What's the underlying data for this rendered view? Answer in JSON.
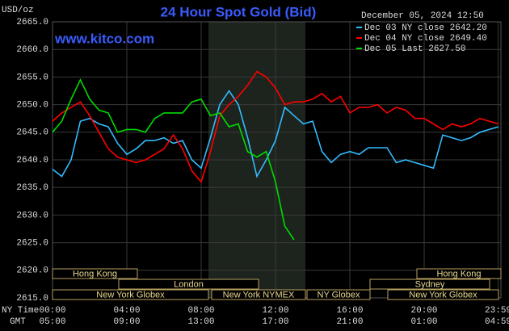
{
  "chart_data": {
    "type": "line",
    "title": "24 Hour Spot Gold (Bid)",
    "unit_label": "USD/oz",
    "website": "www.kitco.com",
    "timestamp": "December 05, 2024 12:50",
    "x_axis_label": "NY Time",
    "x2_axis_label": "GMT",
    "x": [
      0,
      0.5,
      1,
      1.5,
      2,
      2.5,
      3,
      3.5,
      4,
      4.5,
      5,
      5.5,
      6,
      6.5,
      7,
      7.5,
      8,
      8.5,
      9,
      9.5,
      10,
      10.5,
      11,
      11.5,
      12,
      12.5,
      13,
      13.5,
      14,
      14.5,
      15,
      15.5,
      16,
      16.5,
      17,
      17.5,
      18,
      18.5,
      19,
      19.5,
      20,
      20.5,
      21,
      21.5,
      22,
      22.5,
      23,
      23.5,
      24
    ],
    "xlim": [
      0,
      24.13
    ],
    "xticks": [
      {
        "value": 0,
        "label": "00:00"
      },
      {
        "value": 4,
        "label": "04:00"
      },
      {
        "value": 8,
        "label": "08:00"
      },
      {
        "value": 12,
        "label": "12:00"
      },
      {
        "value": 16,
        "label": "16:00"
      },
      {
        "value": 20,
        "label": "20:00"
      },
      {
        "value": 23.98,
        "label": "23:59"
      }
    ],
    "gmt_labels": [
      "05:00",
      "09:00",
      "13:00",
      "17:00",
      "21:00",
      "01:00",
      "04:59"
    ],
    "ylim": [
      2615,
      2665
    ],
    "yticks": [
      {
        "value": 2615,
        "label": "2615.0"
      },
      {
        "value": 2620,
        "label": "2620.0"
      },
      {
        "value": 2625,
        "label": "2625.0"
      },
      {
        "value": 2630,
        "label": "2630.0"
      },
      {
        "value": 2635,
        "label": "2635.0"
      },
      {
        "value": 2640,
        "label": "2640.0"
      },
      {
        "value": 2645,
        "label": "2645.0"
      },
      {
        "value": 2650,
        "label": "2650.0"
      },
      {
        "value": 2655,
        "label": "2655.0"
      },
      {
        "value": 2660,
        "label": "2660.0"
      },
      {
        "value": 2665,
        "label": "2665.0"
      }
    ],
    "grid": true,
    "sessions": [
      "Hong Kong",
      "Hong Kong",
      "London",
      "Sydney",
      "New York Globex",
      "New York NYMEX",
      "NY Globex",
      "New York Globex"
    ],
    "series": [
      {
        "name": "Dec 03 NY close 2642.20",
        "color": "#33bbff",
        "values": [
          2638.3,
          2637,
          2640,
          2647,
          2647.5,
          2646.5,
          2646,
          2643,
          2641,
          2642,
          2643.5,
          2643.5,
          2644,
          2643,
          2643.5,
          2640,
          2638.5,
          2644,
          2650,
          2652.5,
          2650,
          2644,
          2637,
          2640,
          2643.5,
          2649.5,
          2648,
          2646.5,
          2647,
          2641.5,
          2639.5,
          2641,
          2641.5,
          2641,
          2642.2,
          2642.2,
          2642.2,
          2639.5,
          2640,
          2639.5,
          2639,
          2638.5,
          2644.5,
          2644,
          2643.5,
          2644,
          2645,
          2645.5,
          2646
        ]
      },
      {
        "name": "Dec 04 NY close 2649.40",
        "color": "#ff0000",
        "values": [
          2647,
          2648.5,
          2649.5,
          2650.5,
          2648,
          2645,
          2642,
          2640.5,
          2640,
          2639.5,
          2640,
          2641,
          2642,
          2644.5,
          2642,
          2638,
          2636,
          2641.5,
          2648,
          2650,
          2651.5,
          2653.5,
          2656,
          2655,
          2653,
          2650,
          2650.5,
          2650.5,
          2651,
          2652,
          2650.5,
          2651.5,
          2648.5,
          2649.5,
          2649.5,
          2650,
          2648.5,
          2649.5,
          2649,
          2647.5,
          2647.5,
          2646.5,
          2645.5,
          2646.5,
          2646,
          2646.5,
          2647.5,
          2647,
          2646.5
        ]
      },
      {
        "name": "Dec 05 Last 2627.50",
        "color": "#00dd00",
        "values": [
          2645,
          2647,
          2651,
          2654.5,
          2651,
          2649,
          2648.5,
          2645,
          2645.5,
          2645.5,
          2645,
          2647.5,
          2648.5,
          2648.5,
          2648.5,
          2650.5,
          2651,
          2648,
          2648.5,
          2646,
          2646.5,
          2641.5,
          2640.5,
          2641.5,
          2636,
          2628,
          2625.5,
          null,
          null,
          null,
          null,
          null,
          null,
          null,
          null,
          null,
          null,
          null,
          null,
          null,
          null,
          null,
          null,
          null,
          null,
          null,
          null,
          null,
          null
        ]
      }
    ]
  }
}
